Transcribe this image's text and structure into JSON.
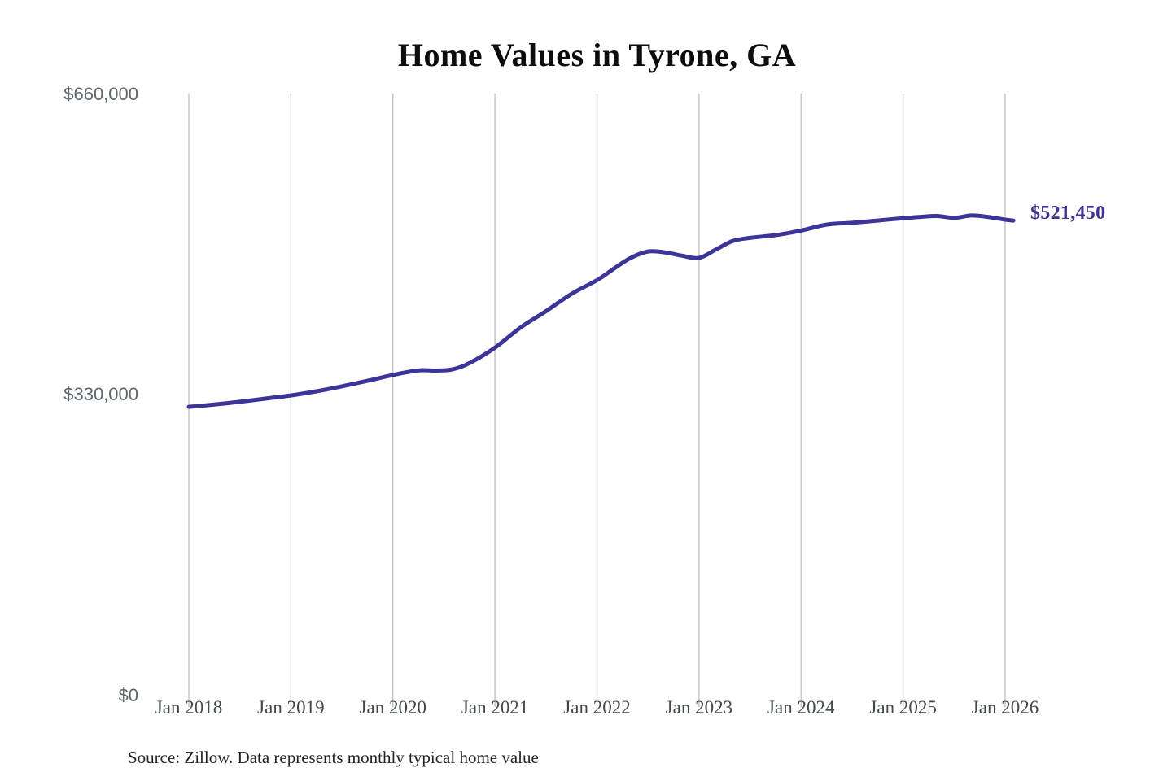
{
  "title": "Home Values in Tyrone, GA",
  "end_label": "$521,450",
  "source_note": "Source: Zillow. Data represents monthly typical home value",
  "colors": {
    "line": "#3c3499",
    "grid": "#c8c8c8",
    "title": "#0d0d0d",
    "y_label": "#5f676e",
    "x_label": "#43484d",
    "end_label": "#3c3499",
    "source": "#1f2328",
    "background": "#ffffff"
  },
  "chart_data": {
    "type": "line",
    "title": "Home Values in Tyrone, GA",
    "xlabel": "",
    "ylabel": "",
    "ylim": [
      0,
      660000
    ],
    "xlim": [
      2018,
      2026.17
    ],
    "grid": "vertical-only",
    "legend": "none",
    "y_ticks": [
      0,
      330000,
      660000
    ],
    "y_tick_labels": [
      "$0",
      "$330,000",
      "$660,000"
    ],
    "x_ticks": [
      2018,
      2019,
      2020,
      2021,
      2022,
      2023,
      2024,
      2025,
      2026
    ],
    "x_tick_labels": [
      "Jan 2018",
      "Jan 2019",
      "Jan 2020",
      "Jan 2021",
      "Jan 2022",
      "Jan 2023",
      "Jan 2024",
      "Jan 2025",
      "Jan 2026"
    ],
    "series": [
      {
        "name": "Monthly typical home value",
        "color": "#3c3499",
        "x": [
          2018.0,
          2018.25,
          2018.5,
          2018.75,
          2019.0,
          2019.25,
          2019.5,
          2019.75,
          2020.0,
          2020.25,
          2020.42,
          2020.58,
          2020.75,
          2021.0,
          2021.25,
          2021.5,
          2021.75,
          2022.0,
          2022.17,
          2022.33,
          2022.5,
          2022.67,
          2022.83,
          2023.0,
          2023.17,
          2023.33,
          2023.5,
          2023.75,
          2024.0,
          2024.25,
          2024.5,
          2024.75,
          2025.0,
          2025.17,
          2025.33,
          2025.5,
          2025.67,
          2025.83,
          2026.0,
          2026.08
        ],
        "values": [
          317000,
          319500,
          322500,
          326000,
          329500,
          334000,
          339500,
          345500,
          352000,
          357000,
          356800,
          358000,
          365000,
          382000,
          404000,
          422000,
          441000,
          456000,
          469000,
          480500,
          487500,
          486500,
          483000,
          480500,
          490000,
          499000,
          502500,
          505500,
          510500,
          517000,
          519000,
          521500,
          524000,
          525500,
          526500,
          524500,
          527000,
          525500,
          522500,
          521450
        ]
      }
    ],
    "end_annotation": {
      "text": "$521,450",
      "value": 521450
    }
  }
}
